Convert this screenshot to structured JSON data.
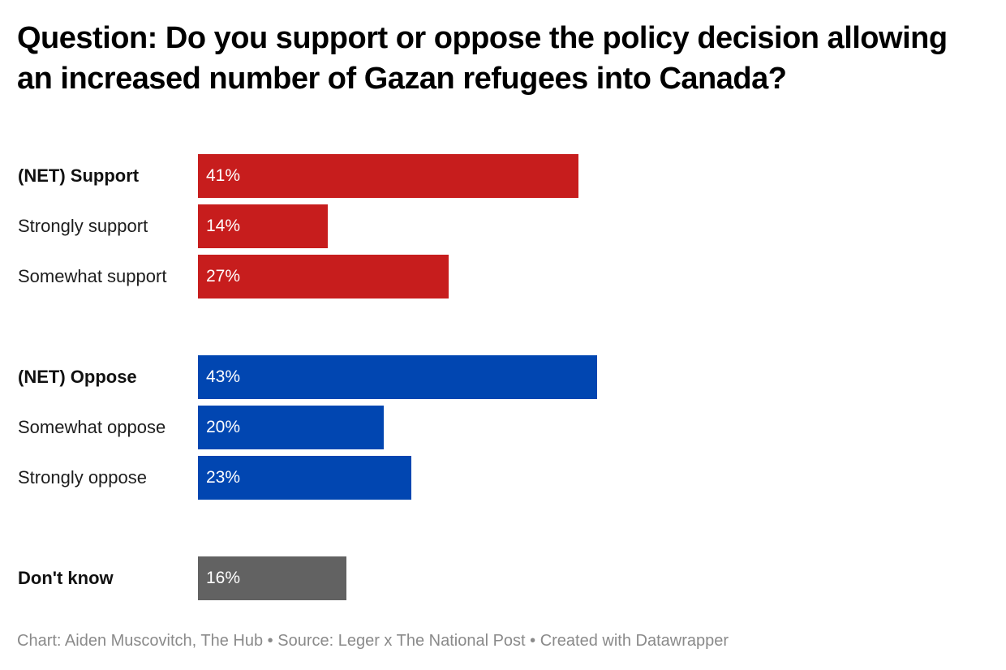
{
  "chart_data": {
    "type": "bar",
    "orientation": "horizontal",
    "title": "Question: Do you support or oppose the policy decision allowing an increased number of Gazan refugees into Canada?",
    "xlabel": "",
    "ylabel": "",
    "xlim": [
      0,
      43
    ],
    "grid": false,
    "value_suffix": "%",
    "categories": [
      "(NET) Support",
      "Strongly support",
      "Somewhat support",
      "(NET) Oppose",
      "Somewhat oppose",
      "Strongly oppose",
      "Don't know"
    ],
    "values": [
      41,
      14,
      27,
      43,
      20,
      23,
      16
    ],
    "value_labels": [
      "41%",
      "14%",
      "27%",
      "43%",
      "20%",
      "23%",
      "16%"
    ],
    "bold": [
      true,
      false,
      false,
      true,
      false,
      false,
      true
    ],
    "groups": [
      "support",
      "support",
      "support",
      "oppose",
      "oppose",
      "oppose",
      "dontknow"
    ],
    "colors": {
      "support": "#c71d1d",
      "oppose": "#0146b1",
      "dontknow": "#626262"
    }
  },
  "footer": {
    "text": "Chart: Aiden Muscovitch, The Hub • Source: Leger x The National Post • Created with Datawrapper"
  }
}
